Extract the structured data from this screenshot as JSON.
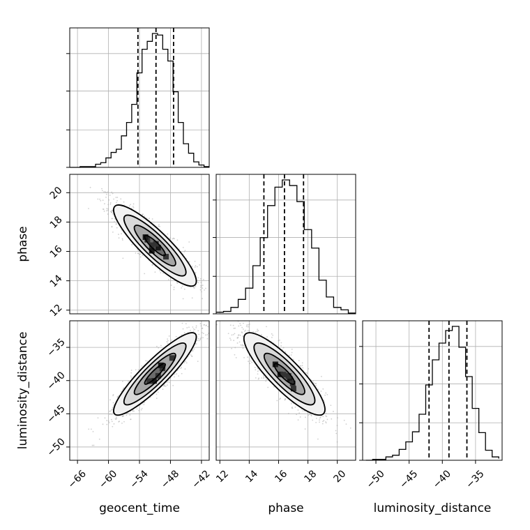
{
  "chart_data": {
    "type": "corner",
    "parameters": [
      "geocent_time",
      "phase",
      "luminosity_distance"
    ],
    "axis_labels": {
      "x": [
        "geocent_time",
        "phase",
        "luminosity_distance"
      ],
      "y": [
        "",
        "phase",
        "luminosity_distance"
      ]
    },
    "ranges": {
      "geocent_time": [
        -67.5,
        -40.5
      ],
      "phase": [
        11.75,
        21.25
      ],
      "luminosity_distance": [
        -52.0,
        -31.0
      ]
    },
    "ticks": {
      "geocent_time": [
        -66,
        -60,
        -54,
        -48,
        -42
      ],
      "phase": [
        12,
        14,
        16,
        18,
        20
      ],
      "luminosity_distance": [
        -50,
        -45,
        -40,
        -35
      ]
    },
    "tick_labels": {
      "geocent_time": [
        "−66",
        "−60",
        "−54",
        "−48",
        "−42"
      ],
      "phase": [
        "12",
        "14",
        "16",
        "18",
        "20"
      ],
      "luminosity_distance": [
        "−50",
        "−45",
        "−40",
        "−35"
      ]
    },
    "quantiles": {
      "geocent_time": [
        -54.3,
        -50.8,
        -47.4
      ],
      "phase": [
        15.0,
        16.4,
        17.7
      ],
      "luminosity_distance": [
        -42.0,
        -39.0,
        -36.3
      ]
    },
    "histograms": {
      "geocent_time": {
        "edges": [
          -67.5,
          -66.5,
          -65.5,
          -64.5,
          -63.5,
          -62.5,
          -61.5,
          -60.5,
          -59.5,
          -58.5,
          -57.5,
          -56.5,
          -55.5,
          -54.5,
          -53.5,
          -52.5,
          -51.5,
          -50.5,
          -49.5,
          -48.5,
          -47.5,
          -46.5,
          -45.5,
          -44.5,
          -43.5,
          -42.5,
          -41.5,
          -40.5
        ],
        "counts": [
          0,
          0,
          1,
          1,
          1,
          4,
          6,
          12,
          19,
          23,
          40,
          57,
          80,
          120,
          150,
          160,
          170,
          168,
          150,
          135,
          96,
          57,
          30,
          18,
          7,
          3,
          1
        ]
      },
      "phase": {
        "edges": [
          11.75,
          12.25,
          12.75,
          13.25,
          13.75,
          14.25,
          14.75,
          15.25,
          15.75,
          16.25,
          16.75,
          17.25,
          17.75,
          18.25,
          18.75,
          19.25,
          19.75,
          20.25,
          20.75,
          21.25
        ],
        "counts": [
          2,
          3,
          8,
          18,
          32,
          60,
          95,
          135,
          158,
          167,
          160,
          140,
          105,
          82,
          42,
          21,
          8,
          5,
          1
        ]
      },
      "luminosity_distance": {
        "edges": [
          -51.5,
          -50.5,
          -49.5,
          -48.5,
          -47.5,
          -46.5,
          -45.5,
          -44.5,
          -43.5,
          -42.5,
          -41.5,
          -40.5,
          -39.5,
          -38.5,
          -37.5,
          -36.5,
          -35.5,
          -34.5,
          -33.5,
          -32.5,
          -31.5
        ],
        "counts": [
          0,
          1,
          1,
          4,
          6,
          13,
          22,
          34,
          55,
          90,
          120,
          140,
          155,
          160,
          135,
          100,
          62,
          33,
          12,
          4,
          2
        ]
      }
    },
    "joint_2d": [
      {
        "x": "geocent_time",
        "y": "phase",
        "mean": [
          -51.0,
          16.4
        ],
        "std": [
          4.0,
          1.38
        ],
        "correlation": -0.88
      },
      {
        "x": "geocent_time",
        "y": "luminosity_distance",
        "mean": [
          -51.0,
          -39.0
        ],
        "std": [
          4.0,
          3.1
        ],
        "correlation": 0.9
      },
      {
        "x": "phase",
        "y": "luminosity_distance",
        "mean": [
          16.4,
          -39.0
        ],
        "std": [
          1.38,
          3.1
        ],
        "correlation": -0.86
      }
    ],
    "contour_levels_sigma": [
      0.5,
      1.0,
      1.5,
      2.0
    ],
    "grid": true,
    "colors": {
      "hist": "#000000",
      "quantile": "#000000",
      "grid": "#b0b0b0",
      "points": "#a8a8a8",
      "axes": "#000000"
    }
  }
}
